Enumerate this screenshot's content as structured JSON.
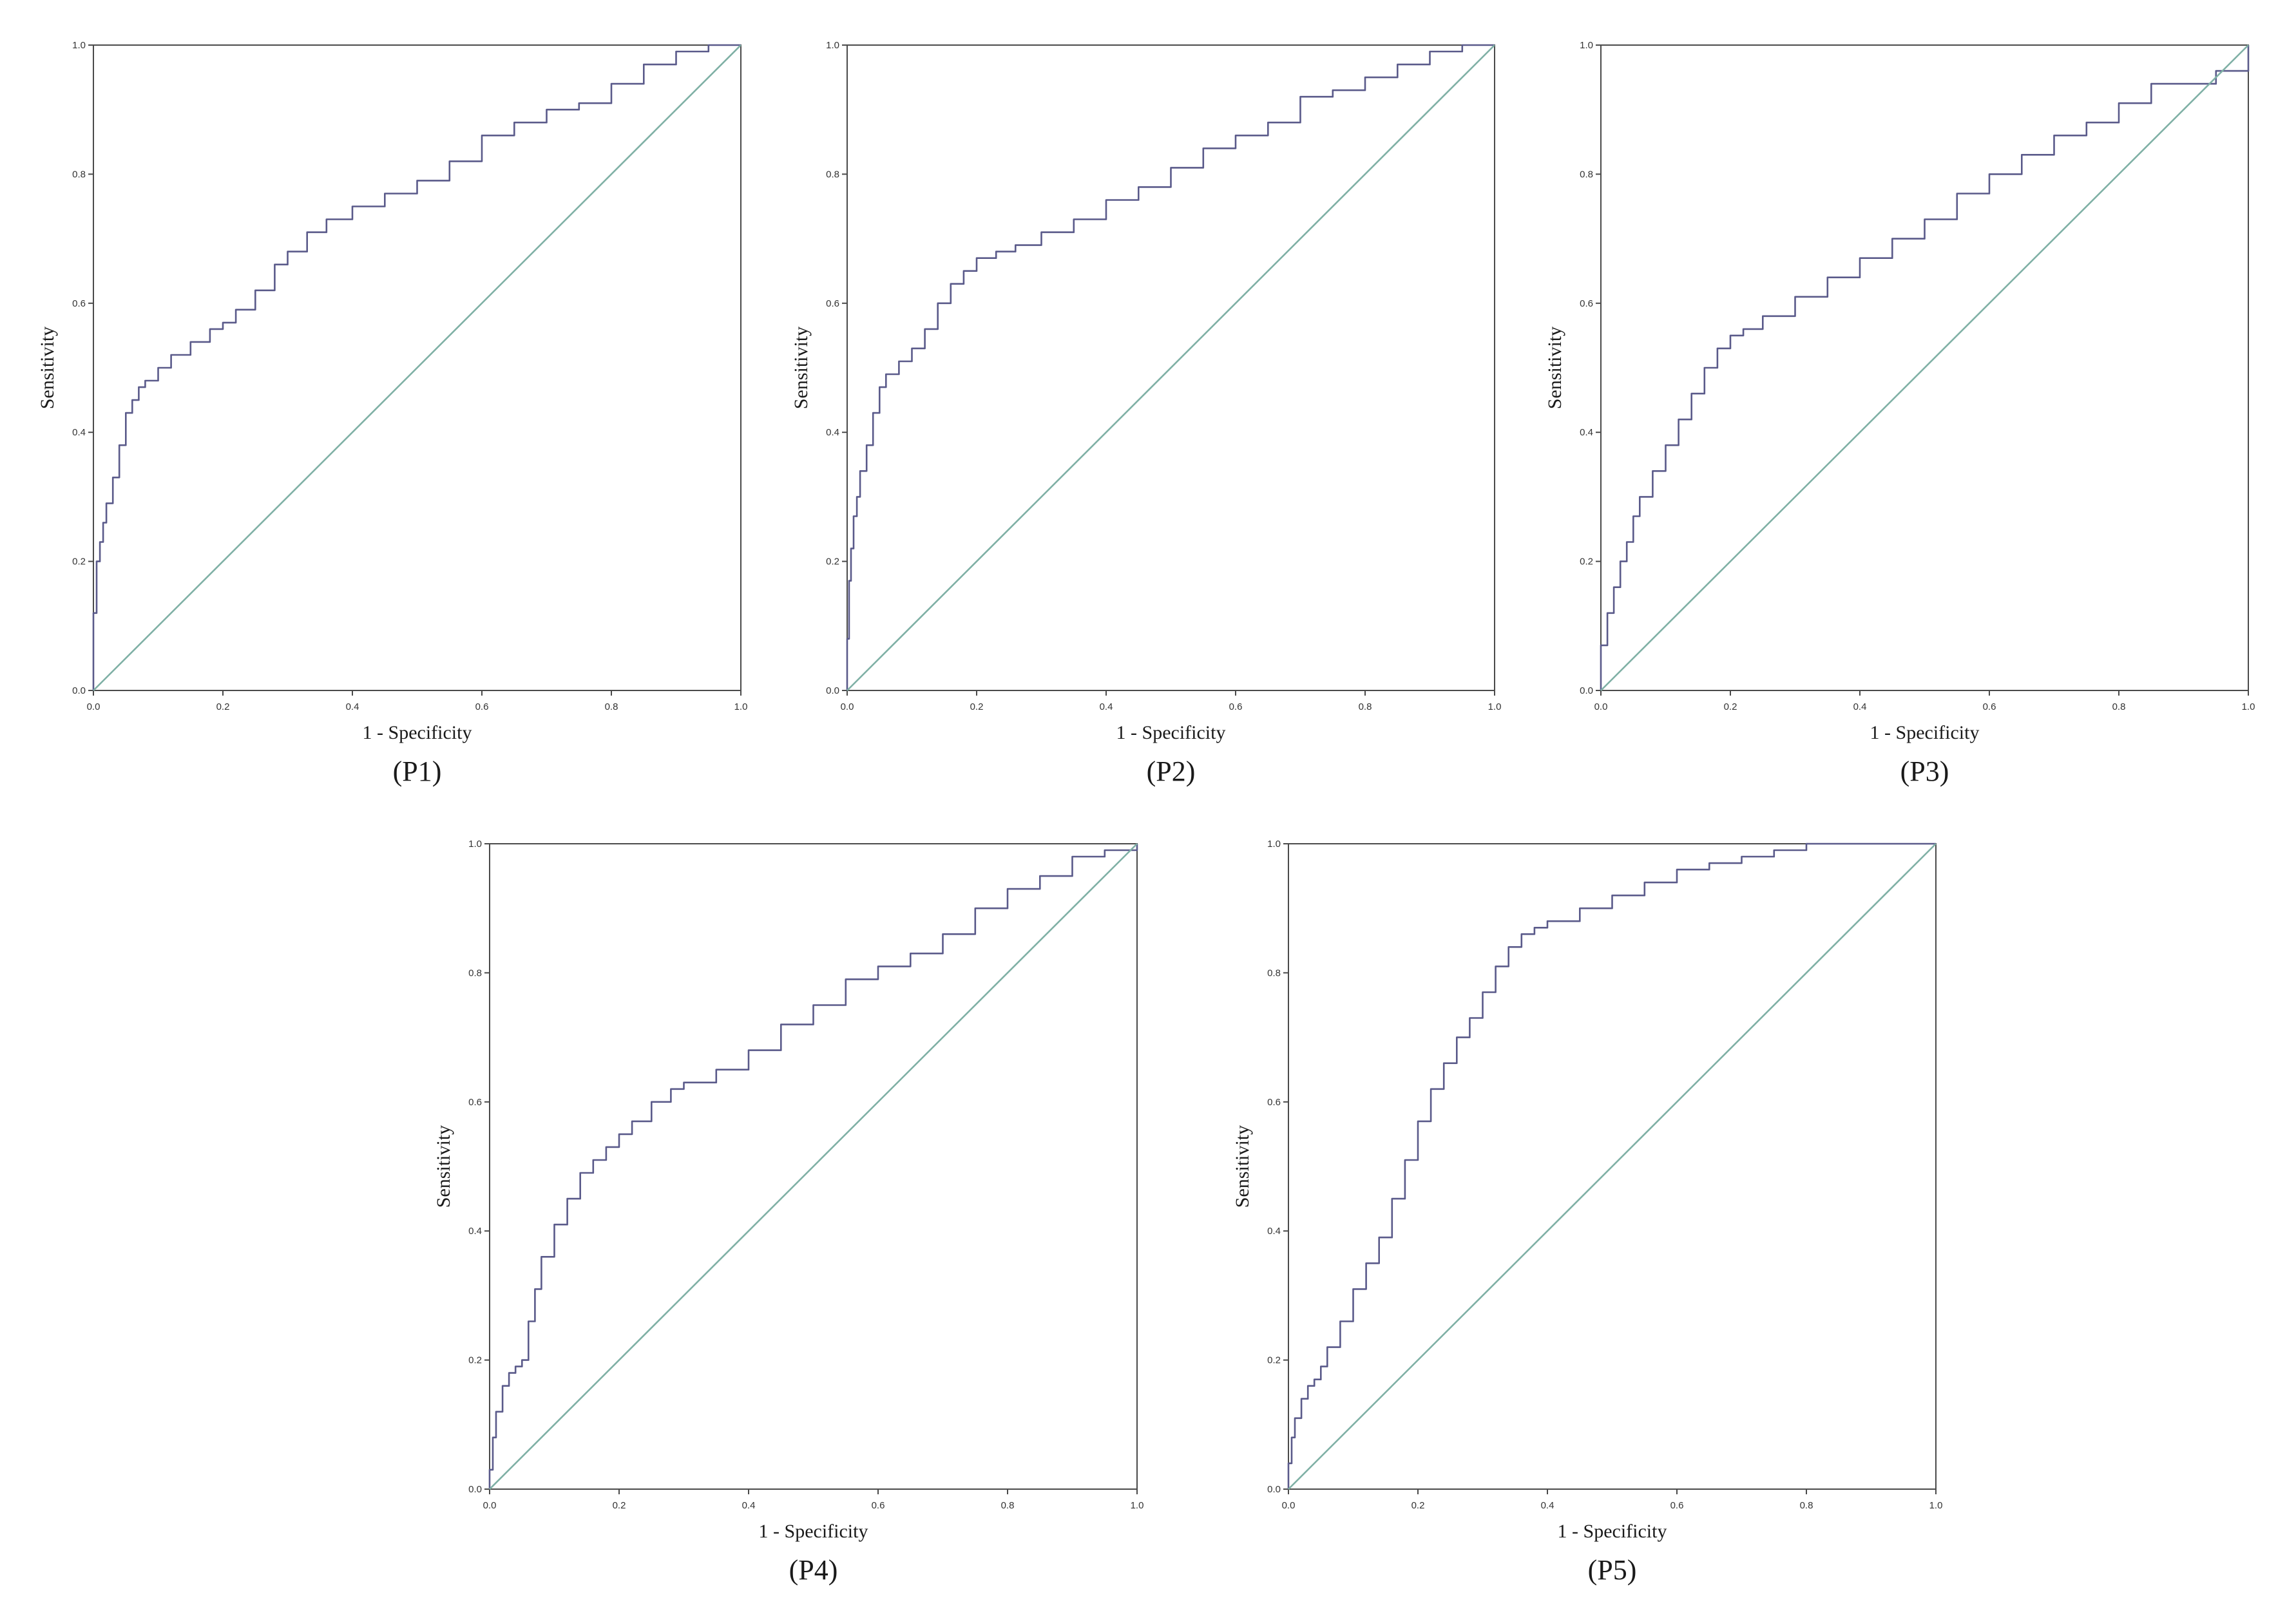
{
  "colors": {
    "roc_curve": "#5a5a8a",
    "reference_line": "#7fb0a5",
    "frame": "#4a4a4a"
  },
  "chart_data": [
    {
      "type": "line",
      "caption": "(P1)",
      "xlabel": "1 - Specificity",
      "ylabel": "Sensitivity",
      "xlim": [
        0,
        1
      ],
      "ylim": [
        0,
        1
      ],
      "xticks": [
        "0.0",
        "0.2",
        "0.4",
        "0.6",
        "0.8",
        "1.0"
      ],
      "yticks": [
        "0.0",
        "0.2",
        "0.4",
        "0.6",
        "0.8",
        "1.0"
      ],
      "grid": false,
      "series": [
        {
          "role": "roc",
          "x": [
            0,
            0,
            0.005,
            0.01,
            0.015,
            0.02,
            0.03,
            0.04,
            0.05,
            0.06,
            0.07,
            0.08,
            0.1,
            0.12,
            0.15,
            0.18,
            0.2,
            0.22,
            0.25,
            0.28,
            0.3,
            0.33,
            0.36,
            0.4,
            0.45,
            0.5,
            0.55,
            0.6,
            0.65,
            0.7,
            0.75,
            0.8,
            0.85,
            0.9,
            0.95,
            1.0
          ],
          "y": [
            0,
            0.12,
            0.2,
            0.23,
            0.26,
            0.29,
            0.33,
            0.38,
            0.43,
            0.45,
            0.47,
            0.48,
            0.5,
            0.52,
            0.54,
            0.56,
            0.57,
            0.59,
            0.62,
            0.66,
            0.68,
            0.71,
            0.73,
            0.75,
            0.77,
            0.79,
            0.82,
            0.86,
            0.88,
            0.9,
            0.91,
            0.94,
            0.97,
            0.99,
            1.0,
            1.0
          ]
        },
        {
          "role": "reference",
          "x": [
            0,
            1
          ],
          "y": [
            0,
            1
          ]
        }
      ]
    },
    {
      "type": "line",
      "caption": "(P2)",
      "xlabel": "1 - Specificity",
      "ylabel": "Sensitivity",
      "xlim": [
        0,
        1
      ],
      "ylim": [
        0,
        1
      ],
      "xticks": [
        "0.0",
        "0.2",
        "0.4",
        "0.6",
        "0.8",
        "1.0"
      ],
      "yticks": [
        "0.0",
        "0.2",
        "0.4",
        "0.6",
        "0.8",
        "1.0"
      ],
      "grid": false,
      "series": [
        {
          "role": "roc",
          "x": [
            0,
            0,
            0.003,
            0.006,
            0.01,
            0.015,
            0.02,
            0.03,
            0.04,
            0.05,
            0.06,
            0.08,
            0.1,
            0.12,
            0.14,
            0.16,
            0.18,
            0.2,
            0.23,
            0.26,
            0.3,
            0.35,
            0.4,
            0.45,
            0.5,
            0.55,
            0.6,
            0.65,
            0.7,
            0.75,
            0.8,
            0.85,
            0.9,
            0.95,
            1.0
          ],
          "y": [
            0,
            0.08,
            0.17,
            0.22,
            0.27,
            0.3,
            0.34,
            0.38,
            0.43,
            0.47,
            0.49,
            0.51,
            0.53,
            0.56,
            0.6,
            0.63,
            0.65,
            0.67,
            0.68,
            0.69,
            0.71,
            0.73,
            0.76,
            0.78,
            0.81,
            0.84,
            0.86,
            0.88,
            0.92,
            0.93,
            0.95,
            0.97,
            0.99,
            1.0,
            1.0
          ]
        },
        {
          "role": "reference",
          "x": [
            0,
            1
          ],
          "y": [
            0,
            1
          ]
        }
      ]
    },
    {
      "type": "line",
      "caption": "(P3)",
      "xlabel": "1 - Specificity",
      "ylabel": "Sensitivity",
      "xlim": [
        0,
        1
      ],
      "ylim": [
        0,
        1
      ],
      "xticks": [
        "0.0",
        "0.2",
        "0.4",
        "0.6",
        "0.8",
        "1.0"
      ],
      "yticks": [
        "0.0",
        "0.2",
        "0.4",
        "0.6",
        "0.8",
        "1.0"
      ],
      "grid": false,
      "series": [
        {
          "role": "roc",
          "x": [
            0,
            0,
            0.01,
            0.02,
            0.03,
            0.04,
            0.05,
            0.06,
            0.08,
            0.1,
            0.12,
            0.14,
            0.16,
            0.18,
            0.2,
            0.22,
            0.25,
            0.3,
            0.35,
            0.4,
            0.45,
            0.5,
            0.55,
            0.6,
            0.65,
            0.7,
            0.75,
            0.8,
            0.85,
            0.9,
            0.95,
            1.0
          ],
          "y": [
            0,
            0.07,
            0.12,
            0.16,
            0.2,
            0.23,
            0.27,
            0.3,
            0.34,
            0.38,
            0.42,
            0.46,
            0.5,
            0.53,
            0.55,
            0.56,
            0.58,
            0.61,
            0.64,
            0.67,
            0.7,
            0.73,
            0.77,
            0.8,
            0.83,
            0.86,
            0.88,
            0.91,
            0.94,
            0.94,
            0.96,
            1.0
          ]
        },
        {
          "role": "reference",
          "x": [
            0,
            1
          ],
          "y": [
            0,
            1
          ]
        }
      ]
    },
    {
      "type": "line",
      "caption": "(P4)",
      "xlabel": "1 - Specificity",
      "ylabel": "Sensitivity",
      "xlim": [
        0,
        1
      ],
      "ylim": [
        0,
        1
      ],
      "xticks": [
        "0.0",
        "0.2",
        "0.4",
        "0.6",
        "0.8",
        "1.0"
      ],
      "yticks": [
        "0.0",
        "0.2",
        "0.4",
        "0.6",
        "0.8",
        "1.0"
      ],
      "grid": false,
      "series": [
        {
          "role": "roc",
          "x": [
            0,
            0,
            0.005,
            0.01,
            0.02,
            0.03,
            0.04,
            0.05,
            0.06,
            0.07,
            0.08,
            0.1,
            0.12,
            0.14,
            0.16,
            0.18,
            0.2,
            0.22,
            0.25,
            0.28,
            0.3,
            0.35,
            0.4,
            0.45,
            0.5,
            0.55,
            0.6,
            0.65,
            0.7,
            0.75,
            0.8,
            0.85,
            0.9,
            0.95,
            1.0
          ],
          "y": [
            0,
            0.03,
            0.08,
            0.12,
            0.16,
            0.18,
            0.19,
            0.2,
            0.26,
            0.31,
            0.36,
            0.41,
            0.45,
            0.49,
            0.51,
            0.53,
            0.55,
            0.57,
            0.6,
            0.62,
            0.63,
            0.65,
            0.68,
            0.72,
            0.75,
            0.79,
            0.81,
            0.83,
            0.86,
            0.9,
            0.93,
            0.95,
            0.98,
            0.99,
            1.0
          ]
        },
        {
          "role": "reference",
          "x": [
            0,
            1
          ],
          "y": [
            0,
            1
          ]
        }
      ]
    },
    {
      "type": "line",
      "caption": "(P5)",
      "xlabel": "1 - Specificity",
      "ylabel": "Sensitivity",
      "xlim": [
        0,
        1
      ],
      "ylim": [
        0,
        1
      ],
      "xticks": [
        "0.0",
        "0.2",
        "0.4",
        "0.6",
        "0.8",
        "1.0"
      ],
      "yticks": [
        "0.0",
        "0.2",
        "0.4",
        "0.6",
        "0.8",
        "1.0"
      ],
      "grid": false,
      "series": [
        {
          "role": "roc",
          "x": [
            0,
            0,
            0.005,
            0.01,
            0.02,
            0.03,
            0.04,
            0.05,
            0.06,
            0.08,
            0.1,
            0.12,
            0.14,
            0.16,
            0.18,
            0.2,
            0.22,
            0.24,
            0.26,
            0.28,
            0.3,
            0.32,
            0.34,
            0.36,
            0.38,
            0.4,
            0.45,
            0.5,
            0.55,
            0.6,
            0.65,
            0.7,
            0.75,
            0.8,
            0.81,
            1.0
          ],
          "y": [
            0,
            0.04,
            0.08,
            0.11,
            0.14,
            0.16,
            0.17,
            0.19,
            0.22,
            0.26,
            0.31,
            0.35,
            0.39,
            0.45,
            0.51,
            0.57,
            0.62,
            0.66,
            0.7,
            0.73,
            0.77,
            0.81,
            0.84,
            0.86,
            0.87,
            0.88,
            0.9,
            0.92,
            0.94,
            0.96,
            0.97,
            0.98,
            0.99,
            1.0,
            1.0,
            1.0
          ]
        },
        {
          "role": "reference",
          "x": [
            0,
            1
          ],
          "y": [
            0,
            1
          ]
        }
      ]
    }
  ]
}
